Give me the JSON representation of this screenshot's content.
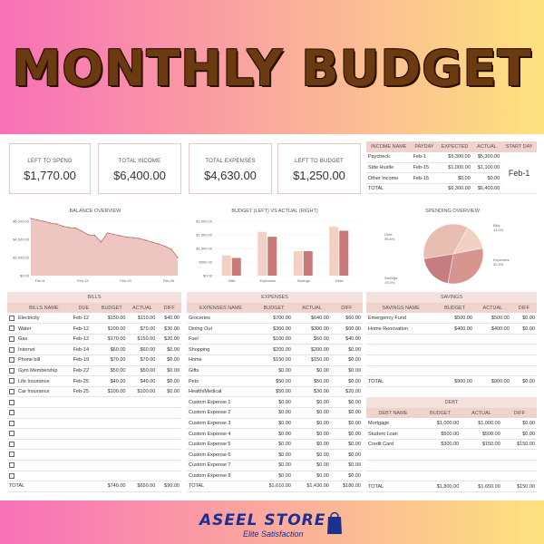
{
  "title": "MONTHLY BUDGET",
  "cards": [
    {
      "label": "LEFT TO SPEND",
      "value": "$1,770.00"
    },
    {
      "label": "TOTAL INCOME",
      "value": "$6,400.00"
    },
    {
      "label": "TOTAL EXPENSES",
      "value": "$4,630.00"
    },
    {
      "label": "LEFT TO BUDGET",
      "value": "$1,250.00"
    }
  ],
  "income": {
    "headers": [
      "INCOME NAME",
      "PAYDAY",
      "EXPECTED",
      "ACTUAL",
      "START DAY"
    ],
    "rows": [
      [
        "Paycheck",
        "Feb-1",
        "$5,300.00",
        "$5,300.00"
      ],
      [
        "Side Hustle",
        "Feb-15",
        "$1,000.00",
        "$1,100.00"
      ],
      [
        "Other Income",
        "Feb-15",
        "$0.00",
        "$0.00"
      ],
      [
        "TOTAL",
        "",
        "$6,300.00",
        "$6,400.00"
      ]
    ],
    "start_day": "Feb-1"
  },
  "charts": {
    "balance_title": "BALANCE OVERVIEW",
    "bva_title": "BUDGET (LEFT) VS ACTUAL (RIGHT)",
    "spending_title": "SPENDING OVERVIEW"
  },
  "chart_data": [
    {
      "type": "area",
      "title": "BALANCE OVERVIEW",
      "y_ticks": [
        "$6,000.00",
        "$4,000.00",
        "$2,000.00",
        "$0.00"
      ],
      "ylim": [
        0,
        6000
      ],
      "x_ticks": [
        "Feb-6",
        "Feb-13",
        "Feb-20",
        "Feb-26"
      ],
      "values": [
        6300,
        6150,
        6000,
        5800,
        5700,
        5450,
        5300,
        5250,
        4900,
        4500,
        4450,
        3700,
        4700,
        4550,
        4400,
        4250,
        4200,
        4100,
        3900,
        3700,
        3500,
        3250,
        2900,
        2000
      ]
    },
    {
      "type": "bar",
      "title": "BUDGET (LEFT) VS ACTUAL (RIGHT)",
      "categories": [
        "Bills",
        "Expenses",
        "Savings",
        "Debt"
      ],
      "y_ticks": [
        "$2,000.00",
        "$1,500.00",
        "$1,000.00",
        "$500.00",
        "$0.00"
      ],
      "ylim": [
        0,
        2000
      ],
      "series": [
        {
          "values": [
            740,
            1610,
            900,
            1800
          ]
        },
        {
          "values": [
            650,
            1430,
            900,
            1650
          ]
        }
      ]
    },
    {
      "type": "pie",
      "title": "SPENDING OVERVIEW",
      "slices": [
        {
          "label": "Bills",
          "pct": "14.0%",
          "value": 14.0,
          "color": "#f2d0c4"
        },
        {
          "label": "Expenses",
          "pct": "30.9%",
          "value": 30.9,
          "color": "#d89590"
        },
        {
          "label": "Savings",
          "pct": "19.4%",
          "value": 19.4,
          "color": "#c57d80"
        },
        {
          "label": "Debt",
          "pct": "35.6%",
          "value": 35.6,
          "color": "#e8bdb2"
        }
      ]
    }
  ],
  "bills": {
    "section": "BILLS",
    "headers": [
      "BILLS NAME",
      "DUE",
      "BUDGET",
      "ACTUAL",
      "DIFF"
    ],
    "rows": [
      [
        "Electricity",
        "Feb-12",
        "$150.00",
        "$110.00",
        "$40.00"
      ],
      [
        "Water",
        "Feb-12",
        "$100.00",
        "$70.00",
        "$30.00"
      ],
      [
        "Gas",
        "Feb-12",
        "$170.00",
        "$150.00",
        "$20.00"
      ],
      [
        "Internet",
        "Feb-14",
        "$60.00",
        "$60.00",
        "$0.00"
      ],
      [
        "Phone bill",
        "Feb-19",
        "$70.00",
        "$70.00",
        "$0.00"
      ],
      [
        "Gym Membership",
        "Feb-22",
        "$50.00",
        "$50.00",
        "$0.00"
      ],
      [
        "Life Insurance",
        "Feb-25",
        "$40.00",
        "$40.00",
        "$0.00"
      ],
      [
        "Car Insurance",
        "Feb-25",
        "$100.00",
        "$100.00",
        "$0.00"
      ],
      [
        "",
        "",
        "",
        "",
        ""
      ],
      [
        "",
        "",
        "",
        "",
        ""
      ],
      [
        "",
        "",
        "",
        "",
        ""
      ],
      [
        "",
        "",
        "",
        "",
        ""
      ],
      [
        "",
        "",
        "",
        "",
        ""
      ],
      [
        "",
        "",
        "",
        "",
        ""
      ],
      [
        "",
        "",
        "",
        "",
        ""
      ],
      [
        "",
        "",
        "",
        "",
        ""
      ]
    ],
    "total": [
      "TOTAL",
      "",
      "$740.00",
      "$650.00",
      "$90.00"
    ]
  },
  "expenses": {
    "section": "EXPENSES",
    "headers": [
      "EXPENSES NAME",
      "BUDGET",
      "ACTUAL",
      "DIFF"
    ],
    "rows": [
      [
        "Groceries",
        "$700.00",
        "$640.00",
        "$60.00"
      ],
      [
        "Dining Out",
        "$360.00",
        "$300.00",
        "$60.00"
      ],
      [
        "Fuel",
        "$100.00",
        "$60.00",
        "$40.00"
      ],
      [
        "Shopping",
        "$200.00",
        "$200.00",
        "$0.00"
      ],
      [
        "Home",
        "$150.00",
        "$150.00",
        "$0.00"
      ],
      [
        "Gifts",
        "$0.00",
        "$0.00",
        "$0.00"
      ],
      [
        "Pets",
        "$50.00",
        "$50.00",
        "$0.00"
      ],
      [
        "Health/Medical",
        "$50.00",
        "$30.00",
        "$20.00"
      ],
      [
        "Custom Expense 1",
        "$0.00",
        "$0.00",
        "$0.00"
      ],
      [
        "Custom Expense 2",
        "$0.00",
        "$0.00",
        "$0.00"
      ],
      [
        "Custom Expense 3",
        "$0.00",
        "$0.00",
        "$0.00"
      ],
      [
        "Custom Expense 4",
        "$0.00",
        "$0.00",
        "$0.00"
      ],
      [
        "Custom Expense 5",
        "$0.00",
        "$0.00",
        "$0.00"
      ],
      [
        "Custom Expense 6",
        "$0.00",
        "$0.00",
        "$0.00"
      ],
      [
        "Custom Expense 7",
        "$0.00",
        "$0.00",
        "$0.00"
      ],
      [
        "Custom Expense 8",
        "$0.00",
        "$0.00",
        "$0.00"
      ]
    ],
    "total": [
      "TOTAL",
      "$1,610.00",
      "$1,430.00",
      "$180.00"
    ]
  },
  "savings": {
    "section": "SAVINGS",
    "headers": [
      "SAVINGS NAME",
      "BUDGET",
      "ACTUAL",
      "DIFF"
    ],
    "rows": [
      [
        "Emergency Fund",
        "$500.00",
        "$500.00",
        "$0.00"
      ],
      [
        "Home Renovation",
        "$400.00",
        "$400.00",
        "$0.00"
      ],
      [
        "",
        "",
        "",
        ""
      ],
      [
        "",
        "",
        "",
        ""
      ],
      [
        "",
        "",
        "",
        ""
      ],
      [
        "",
        "",
        "",
        ""
      ]
    ],
    "total": [
      "TOTAL",
      "$900.00",
      "$900.00",
      "$0.00"
    ]
  },
  "debt": {
    "section": "DEBT",
    "headers": [
      "DEBT NAME",
      "BUDGET",
      "ACTUAL",
      "DIFF"
    ],
    "rows": [
      [
        "Mortgage",
        "$1,000.00",
        "$1,000.00",
        "$0.00"
      ],
      [
        "Student Loan",
        "$500.00",
        "$500.00",
        "$0.00"
      ],
      [
        "Credit Card",
        "$300.00",
        "$150.00",
        "$150.00"
      ],
      [
        "",
        "",
        "",
        ""
      ],
      [
        "",
        "",
        "",
        ""
      ],
      [
        "",
        "",
        "",
        ""
      ]
    ],
    "total": [
      "TOTAL",
      "$1,800.00",
      "$1,650.00",
      "$150.00"
    ]
  },
  "brand": {
    "name": "ASEEL STORE",
    "tagline": "Elite Satisfaction"
  }
}
